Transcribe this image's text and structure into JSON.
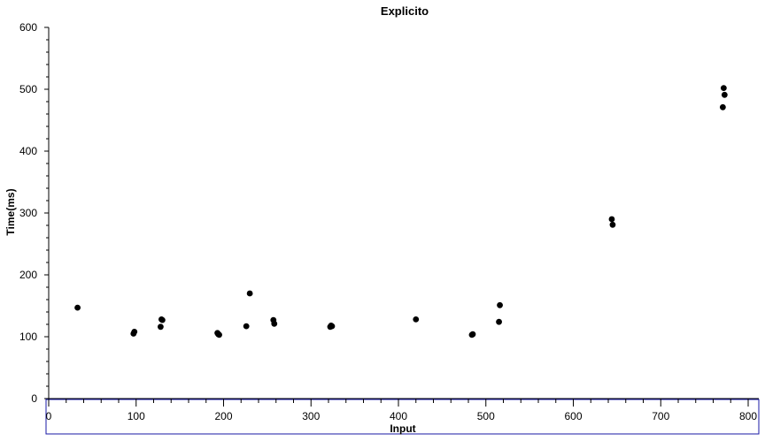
{
  "chart_data": {
    "type": "scatter",
    "title": "Explicito",
    "xlabel": "Input",
    "ylabel": "Time(ms)",
    "xlim": [
      0,
      810
    ],
    "ylim": [
      0,
      600
    ],
    "x_ticks": [
      0,
      100,
      200,
      300,
      400,
      500,
      600,
      700,
      800
    ],
    "y_ticks": [
      0,
      100,
      200,
      300,
      400,
      500,
      600
    ],
    "grid": false,
    "marker_color": "#000000",
    "frame_color": "#1a1aa6",
    "points": [
      {
        "x": 33,
        "y": 147
      },
      {
        "x": 97,
        "y": 105
      },
      {
        "x": 98,
        "y": 108
      },
      {
        "x": 128,
        "y": 116
      },
      {
        "x": 129,
        "y": 128
      },
      {
        "x": 130,
        "y": 127
      },
      {
        "x": 193,
        "y": 106
      },
      {
        "x": 194,
        "y": 104
      },
      {
        "x": 195,
        "y": 103
      },
      {
        "x": 226,
        "y": 117
      },
      {
        "x": 230,
        "y": 170
      },
      {
        "x": 257,
        "y": 127
      },
      {
        "x": 258,
        "y": 121
      },
      {
        "x": 322,
        "y": 116
      },
      {
        "x": 323,
        "y": 118
      },
      {
        "x": 324,
        "y": 117
      },
      {
        "x": 420,
        "y": 128
      },
      {
        "x": 484,
        "y": 103
      },
      {
        "x": 485,
        "y": 104
      },
      {
        "x": 515,
        "y": 124
      },
      {
        "x": 516,
        "y": 151
      },
      {
        "x": 644,
        "y": 290
      },
      {
        "x": 645,
        "y": 281
      },
      {
        "x": 771,
        "y": 471
      },
      {
        "x": 772,
        "y": 502
      },
      {
        "x": 773,
        "y": 491
      }
    ]
  }
}
